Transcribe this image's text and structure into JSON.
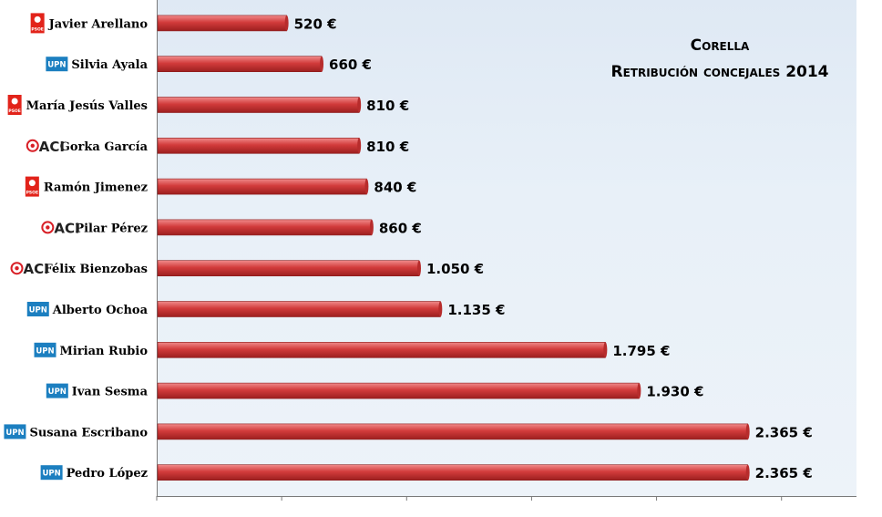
{
  "chart_data": {
    "type": "bar",
    "orientation": "horizontal",
    "title": "Corella",
    "subtitle": "Retribución concejales 2014",
    "xlim": [
      0,
      2800
    ],
    "x_ticks": [
      0,
      500,
      1000,
      1500,
      2000,
      2500
    ],
    "grid": false,
    "bar_color": "#d23b3b",
    "categories": [
      "Javier Arellano",
      "Silvia Ayala",
      "María Jesús Valles",
      "Gorka García",
      "Ramón Jimenez",
      "Pilar Pérez",
      "Félix Bienzobas",
      "Alberto Ochoa",
      "Mirian Rubio",
      "Ivan Sesma",
      "Susana Escribano",
      "Pedro López"
    ],
    "values": [
      520,
      660,
      810,
      810,
      840,
      860,
      1050,
      1135,
      1795,
      1930,
      2365,
      2365
    ],
    "value_labels": [
      "520 €",
      "660 €",
      "810 €",
      "810 €",
      "840 €",
      "860 €",
      "1.050 €",
      "1.135 €",
      "1.795 €",
      "1.930 €",
      "2.365 €",
      "2.365 €"
    ],
    "parties": [
      "PSOE",
      "UPN",
      "PSOE",
      "ACI",
      "PSOE",
      "ACI",
      "ACI",
      "UPN",
      "UPN",
      "UPN",
      "UPN",
      "UPN"
    ]
  },
  "logos": {
    "PSOE": {
      "icon": "psoe-fist-rose-logo",
      "color": "#e2231a",
      "text": "PSOE"
    },
    "UPN": {
      "icon": "upn-logo",
      "color": "#1c7fc0",
      "text": "UPN"
    },
    "ACI": {
      "icon": "aci-logo",
      "color": "#d81f26",
      "text": "ACI"
    }
  }
}
